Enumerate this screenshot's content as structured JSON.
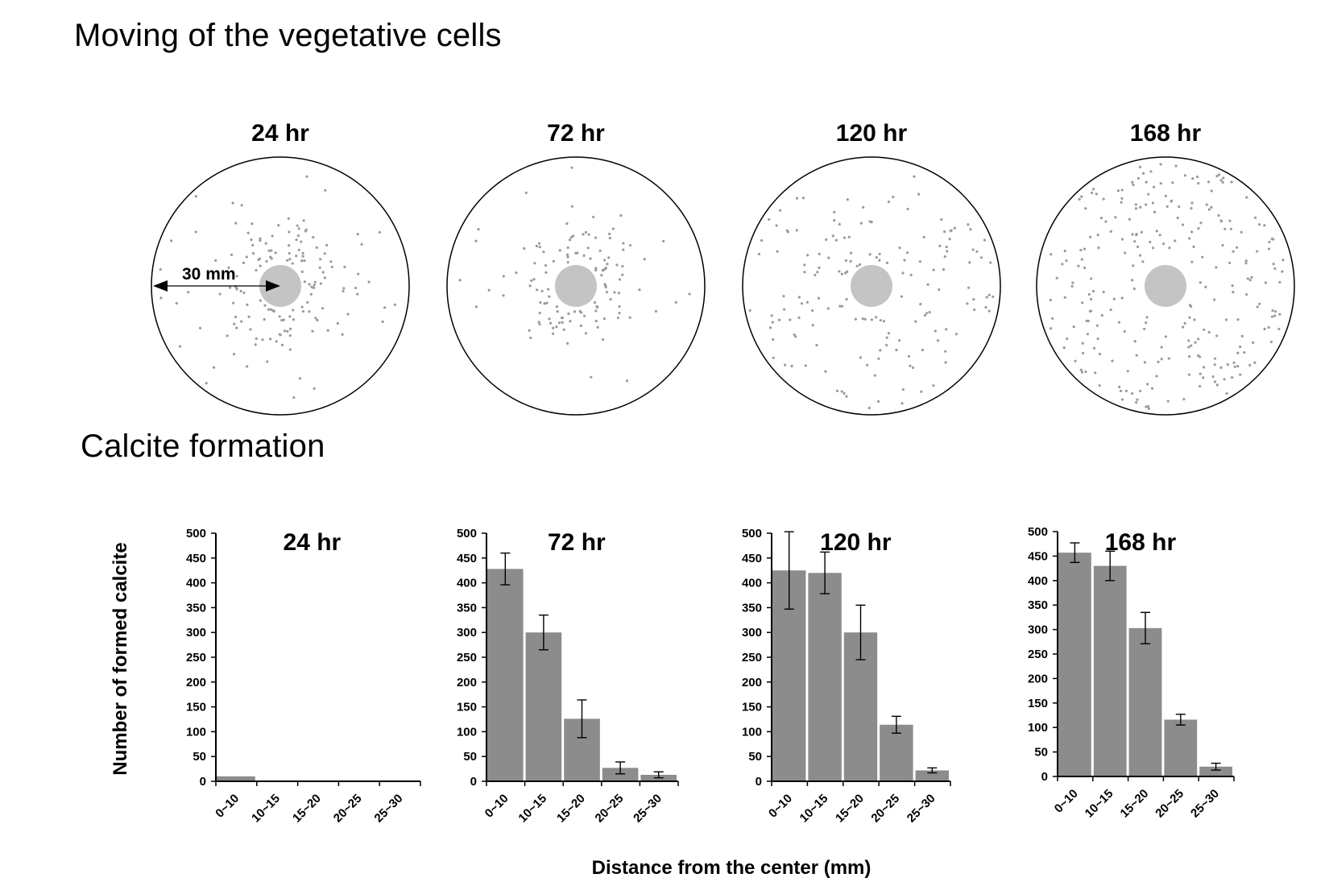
{
  "headings": {
    "moving": "Moving of the vegetative cells",
    "calcite": "Calcite formation"
  },
  "dishes": [
    {
      "label": "24 hr"
    },
    {
      "label": "72 hr"
    },
    {
      "label": "120 hr"
    },
    {
      "label": "168 hr"
    }
  ],
  "scale_label": "30 mm",
  "colors": {
    "bar": "#8c8c8c",
    "dot": "#9a9a9a",
    "colony": "#c4c4c4",
    "line": "#000000"
  },
  "chart_data": [
    {
      "type": "bar",
      "title": "24 hr",
      "categories": [
        "0~10",
        "10~15",
        "15~20",
        "20~25",
        "25~30"
      ],
      "values": [
        10,
        0,
        0,
        0,
        0
      ],
      "errors": [
        0,
        0,
        0,
        0,
        0
      ],
      "ylim": [
        0,
        500
      ],
      "yticks": [
        0,
        50,
        100,
        150,
        200,
        250,
        300,
        350,
        400,
        450,
        500
      ],
      "ylabel": "Number of formed calcite",
      "xlabel": "Distance from the center (mm)"
    },
    {
      "type": "bar",
      "title": "72 hr",
      "categories": [
        "0~10",
        "10~15",
        "15~20",
        "20~25",
        "25~30"
      ],
      "values": [
        428,
        300,
        126,
        27,
        13
      ],
      "errors": [
        32,
        35,
        38,
        12,
        6
      ],
      "ylim": [
        0,
        500
      ],
      "yticks": [
        0,
        50,
        100,
        150,
        200,
        250,
        300,
        350,
        400,
        450,
        500
      ],
      "ylabel": "Number of formed calcite",
      "xlabel": "Distance from the center (mm)"
    },
    {
      "type": "bar",
      "title": "120 hr",
      "categories": [
        "0~10",
        "10~15",
        "15~20",
        "20~25",
        "25~30"
      ],
      "values": [
        425,
        420,
        300,
        114,
        22
      ],
      "errors": [
        78,
        42,
        55,
        17,
        5
      ],
      "ylim": [
        0,
        500
      ],
      "yticks": [
        0,
        50,
        100,
        150,
        200,
        250,
        300,
        350,
        400,
        450,
        500
      ],
      "ylabel": "Number of formed calcite",
      "xlabel": "Distance from the center (mm)"
    },
    {
      "type": "bar",
      "title": "168 hr",
      "categories": [
        "0~10",
        "10~15",
        "15~20",
        "20~25",
        "25~30"
      ],
      "values": [
        457,
        430,
        303,
        116,
        20
      ],
      "errors": [
        20,
        30,
        32,
        11,
        7
      ],
      "ylim": [
        0,
        500
      ],
      "yticks": [
        0,
        50,
        100,
        150,
        200,
        250,
        300,
        350,
        400,
        450,
        500
      ],
      "ylabel": "Number of formed calcite",
      "xlabel": "Distance from the center (mm)"
    }
  ]
}
